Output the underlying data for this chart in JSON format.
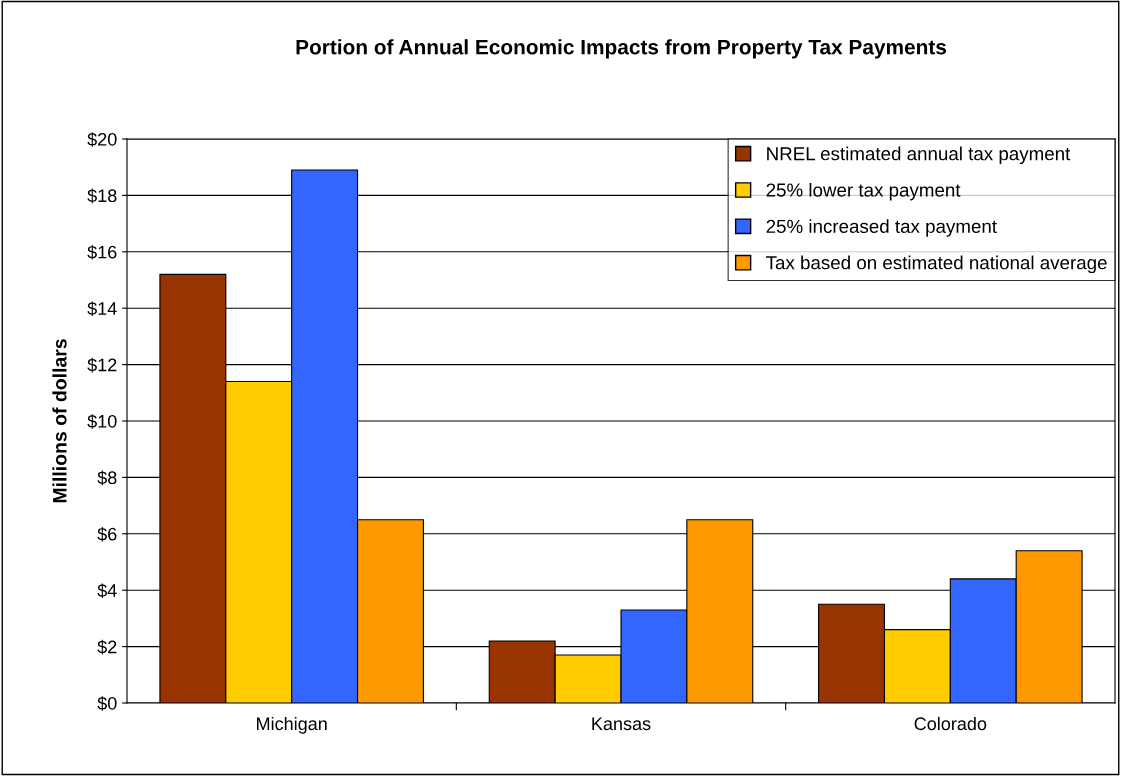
{
  "chart_data": {
    "type": "bar",
    "title": "Portion of Annual Economic Impacts from Property Tax Payments",
    "ylabel": "Millions of dollars",
    "categories": [
      "Michigan",
      "Kansas",
      "Colorado"
    ],
    "series": [
      {
        "name": "NREL estimated annual tax payment",
        "color": "#993300",
        "values": [
          15.2,
          2.2,
          3.5
        ]
      },
      {
        "name": "25% lower tax payment",
        "color": "#ffcc00",
        "values": [
          11.4,
          1.7,
          2.6
        ]
      },
      {
        "name": "25% increased tax payment",
        "color": "#3366ff",
        "values": [
          18.9,
          3.3,
          4.4
        ]
      },
      {
        "name": "Tax based on estimated national average",
        "color": "#ff9900",
        "values": [
          6.5,
          6.5,
          5.4
        ]
      }
    ],
    "ylim": [
      0,
      20
    ],
    "yticks": [
      {
        "value": 0,
        "label": "$0"
      },
      {
        "value": 2,
        "label": "$2"
      },
      {
        "value": 4,
        "label": "$4"
      },
      {
        "value": 6,
        "label": "$6"
      },
      {
        "value": 8,
        "label": "$8"
      },
      {
        "value": 10,
        "label": "$10"
      },
      {
        "value": 12,
        "label": "$12"
      },
      {
        "value": 14,
        "label": "$14"
      },
      {
        "value": 16,
        "label": "$16"
      },
      {
        "value": 18,
        "label": "$18"
      },
      {
        "value": 20,
        "label": "$20"
      }
    ],
    "grid": "y",
    "legend": "top right"
  }
}
